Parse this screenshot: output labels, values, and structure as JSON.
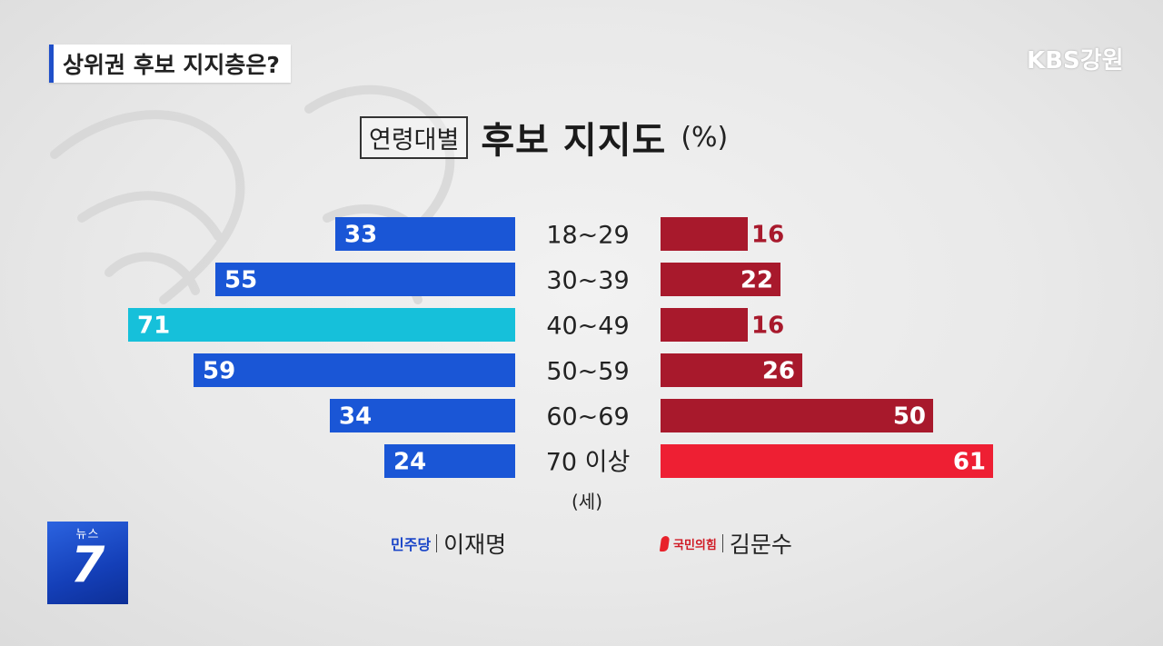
{
  "segment": {
    "title": "상위권 후보 지지층은?"
  },
  "broadcaster": {
    "logo": "KBS강원"
  },
  "program": {
    "top": "뉴스",
    "number": "7"
  },
  "heading": {
    "boxed": "연령대별",
    "main": "후보 지지도",
    "unit": "(%)"
  },
  "unit_note": "(세)",
  "legend": {
    "left": {
      "party": "민주당",
      "candidate": "이재명"
    },
    "right": {
      "party": "국민의힘",
      "candidate": "김문수"
    }
  },
  "colors": {
    "dp": "#1a56d6",
    "dp_highlight": "#16c0da",
    "ppp": "#a8192c",
    "ppp_highlight": "#ee1f33"
  },
  "chart_data": {
    "type": "bar",
    "title": "연령대별 후보 지지도 (%)",
    "categories": [
      "18~29",
      "30~39",
      "40~49",
      "50~59",
      "60~69",
      "70 이상"
    ],
    "series": [
      {
        "name": "이재명",
        "values": [
          33,
          55,
          71,
          59,
          34,
          24
        ]
      },
      {
        "name": "김문수",
        "values": [
          16,
          22,
          16,
          26,
          50,
          61
        ]
      }
    ],
    "highlight": {
      "이재명": "40~49",
      "김문수": "70 이상"
    },
    "xlabel": "(세)",
    "ylabel": "",
    "grid": false,
    "legend_position": "bottom"
  }
}
